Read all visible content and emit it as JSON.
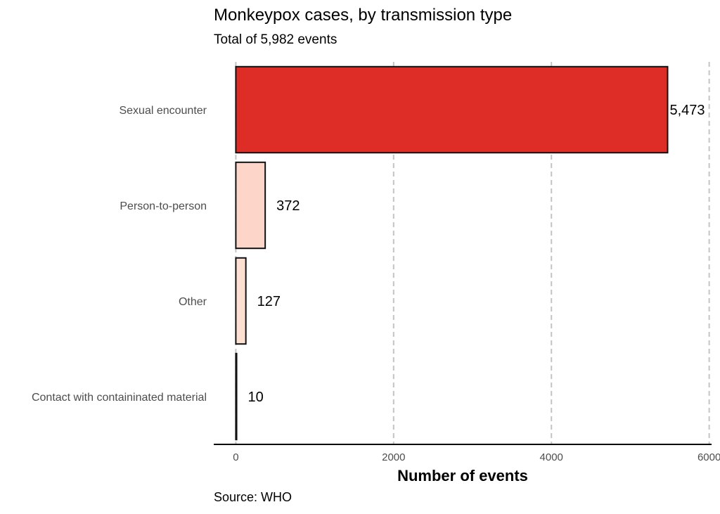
{
  "chart_data": {
    "type": "bar",
    "orientation": "horizontal",
    "title": "Monkeypox cases, by transmission type",
    "subtitle": "Total of 5,982 events",
    "caption": "Source: WHO",
    "xlabel": "Number of events",
    "ylabel": "",
    "categories": [
      "Sexual encounter",
      "Person-to-person",
      "Other",
      "Contact with containinated material"
    ],
    "values": [
      5473,
      372,
      127,
      10
    ],
    "data_labels": [
      "5,473",
      "372",
      "127",
      "10"
    ],
    "bar_colors": [
      "#de2d26",
      "#fdd5c9",
      "#fee0d2",
      "#fee5d9"
    ],
    "xlim": [
      -280,
      6030
    ],
    "x_ticks": [
      0,
      2000,
      4000,
      6000
    ],
    "x_tick_labels": [
      "0",
      "2000",
      "4000",
      "6000"
    ],
    "grid": "vertical dashed major",
    "legend": "none"
  }
}
